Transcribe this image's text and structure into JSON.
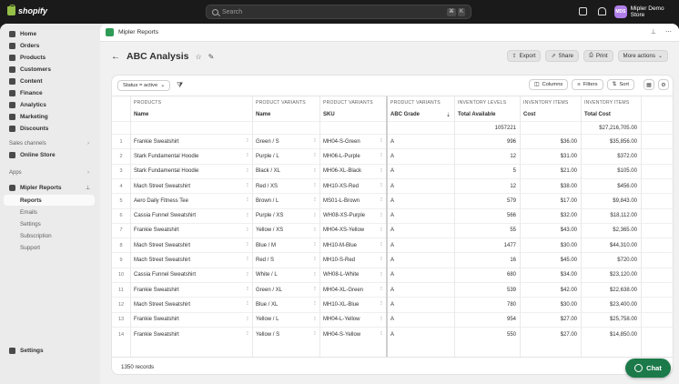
{
  "topbar": {
    "brand": "shopify",
    "search_placeholder": "Search",
    "shortcut_keys": [
      "⌘",
      "K"
    ],
    "avatar_initials": "MDS",
    "store_name": "Mipler Demo Store"
  },
  "sidebar": {
    "items": [
      {
        "label": "Home",
        "icon": "home-icon"
      },
      {
        "label": "Orders",
        "icon": "orders-icon"
      },
      {
        "label": "Products",
        "icon": "tag-icon"
      },
      {
        "label": "Customers",
        "icon": "person-icon"
      },
      {
        "label": "Content",
        "icon": "content-icon"
      },
      {
        "label": "Finance",
        "icon": "bank-icon"
      },
      {
        "label": "Analytics",
        "icon": "chart-icon"
      },
      {
        "label": "Marketing",
        "icon": "target-icon"
      },
      {
        "label": "Discounts",
        "icon": "discount-icon"
      }
    ],
    "sales_channels_label": "Sales channels",
    "online_store": "Online Store",
    "apps_label": "Apps",
    "app_name": "Mipler Reports",
    "app_subitems": [
      "Reports",
      "Emails",
      "Settings",
      "Subscription",
      "Support"
    ],
    "active_subitem": "Reports",
    "settings": "Settings"
  },
  "appbar": {
    "title": "Mipler Reports"
  },
  "page": {
    "title": "ABC Analysis",
    "actions": [
      "Export",
      "Share",
      "Print",
      "More actions"
    ]
  },
  "filterbar": {
    "status_filter": "Status = active",
    "columns": "Columns",
    "filters": "Filters",
    "sort": "Sort"
  },
  "table": {
    "group_headers": [
      "PRODUCTS",
      "PRODUCT VARIANTS",
      "PRODUCT VARIANTS",
      "PRODUCT VARIANTS",
      "INVENTORY LEVELS",
      "INVENTORY ITEMS",
      "INVENTORY ITEMS"
    ],
    "columns": [
      "Name",
      "Name",
      "SKU",
      "ABC Grade",
      "Total Available",
      "Cost",
      "Total Cost"
    ],
    "totals": {
      "total_available": "1057221",
      "total_cost": "$27,216,705.00"
    },
    "rows": [
      {
        "n": "1",
        "product": "Frankie  Sweatshirt",
        "variant": "Green / S",
        "sku": "MH04-S-Green",
        "grade": "A",
        "available": "996",
        "cost": "$36.00",
        "total": "$35,856.00"
      },
      {
        "n": "2",
        "product": "Stark Fundamental Hoodie",
        "variant": "Purple / L",
        "sku": "MH06-L-Purple",
        "grade": "A",
        "available": "12",
        "cost": "$31.00",
        "total": "$372.00"
      },
      {
        "n": "3",
        "product": "Stark Fundamental Hoodie",
        "variant": "Black / XL",
        "sku": "MH06-XL-Black",
        "grade": "A",
        "available": "5",
        "cost": "$21.00",
        "total": "$105.00"
      },
      {
        "n": "4",
        "product": "Mach Street Sweatshirt",
        "variant": "Red / XS",
        "sku": "MH10-XS-Red",
        "grade": "A",
        "available": "12",
        "cost": "$38.00",
        "total": "$456.00"
      },
      {
        "n": "5",
        "product": "Aero Daily Fitness Tee",
        "variant": "Brown / L",
        "sku": "MS01-L-Brown",
        "grade": "A",
        "available": "579",
        "cost": "$17.00",
        "total": "$9,843.00"
      },
      {
        "n": "6",
        "product": "Cassia Funnel Sweatshirt",
        "variant": "Purple / XS",
        "sku": "WH08-XS-Purple",
        "grade": "A",
        "available": "566",
        "cost": "$32.00",
        "total": "$18,112.00"
      },
      {
        "n": "7",
        "product": "Frankie  Sweatshirt",
        "variant": "Yellow / XS",
        "sku": "MH04-XS-Yellow",
        "grade": "A",
        "available": "55",
        "cost": "$43.00",
        "total": "$2,365.00"
      },
      {
        "n": "8",
        "product": "Mach Street Sweatshirt",
        "variant": "Blue / M",
        "sku": "MH10-M-Blue",
        "grade": "A",
        "available": "1477",
        "cost": "$30.00",
        "total": "$44,310.00"
      },
      {
        "n": "9",
        "product": "Mach Street Sweatshirt",
        "variant": "Red / S",
        "sku": "MH10-S-Red",
        "grade": "A",
        "available": "16",
        "cost": "$45.00",
        "total": "$720.00"
      },
      {
        "n": "10",
        "product": "Cassia Funnel Sweatshirt",
        "variant": "White / L",
        "sku": "WH08-L-White",
        "grade": "A",
        "available": "680",
        "cost": "$34.00",
        "total": "$23,120.00"
      },
      {
        "n": "11",
        "product": "Frankie  Sweatshirt",
        "variant": "Green / XL",
        "sku": "MH04-XL-Green",
        "grade": "A",
        "available": "539",
        "cost": "$42.00",
        "total": "$22,638.00"
      },
      {
        "n": "12",
        "product": "Mach Street Sweatshirt",
        "variant": "Blue / XL",
        "sku": "MH10-XL-Blue",
        "grade": "A",
        "available": "780",
        "cost": "$30.00",
        "total": "$23,400.00"
      },
      {
        "n": "13",
        "product": "Frankie  Sweatshirt",
        "variant": "Yellow / L",
        "sku": "MH04-L-Yellow",
        "grade": "A",
        "available": "954",
        "cost": "$27.00",
        "total": "$25,758.00"
      },
      {
        "n": "14",
        "product": "Frankie  Sweatshirt",
        "variant": "Yellow / S",
        "sku": "MH04-S-Yellow",
        "grade": "A",
        "available": "550",
        "cost": "$27.00",
        "total": "$14,850.00"
      }
    ]
  },
  "footer": {
    "records": "1350 records"
  },
  "chat": {
    "label": "Chat"
  },
  "colors": {
    "chat_green": "#1c7a4a",
    "app_icon_green": "#2e9b57",
    "avatar_purple": "#b07ee8",
    "shopify_green": "#95bf47"
  }
}
